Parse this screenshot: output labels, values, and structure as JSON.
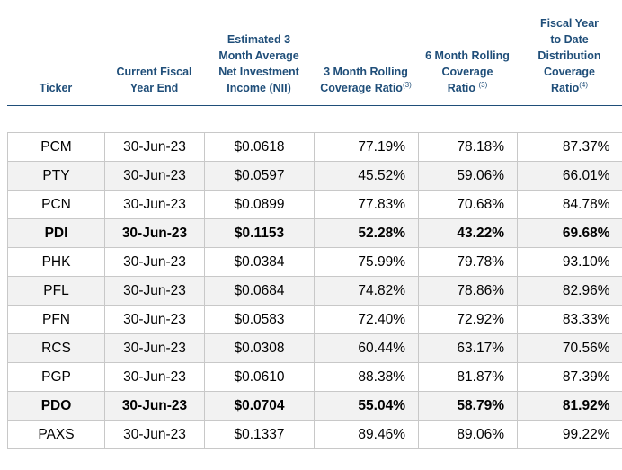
{
  "headers": {
    "ticker": "Ticker",
    "fiscal_year_end": [
      "Current Fiscal",
      "Year End"
    ],
    "nii": [
      "Estimated 3",
      "Month Average",
      "Net Investment",
      "Income (NII)"
    ],
    "three_month": [
      "3 Month Rolling",
      "Coverage Ratio"
    ],
    "three_month_note": "(3)",
    "six_month": [
      "6 Month Rolling",
      "Coverage",
      "Ratio"
    ],
    "six_month_note": "(3)",
    "fytd": [
      "Fiscal Year",
      "to Date",
      "Distribution",
      "Coverage",
      "Ratio"
    ],
    "fytd_note": "(4)"
  },
  "rows": [
    {
      "ticker": "PCM",
      "fye": "30-Jun-23",
      "nii": "$0.0618",
      "r3": "77.19%",
      "r6": "78.18%",
      "fytd": "87.37%",
      "bold": false
    },
    {
      "ticker": "PTY",
      "fye": "30-Jun-23",
      "nii": "$0.0597",
      "r3": "45.52%",
      "r6": "59.06%",
      "fytd": "66.01%",
      "bold": false
    },
    {
      "ticker": "PCN",
      "fye": "30-Jun-23",
      "nii": "$0.0899",
      "r3": "77.83%",
      "r6": "70.68%",
      "fytd": "84.78%",
      "bold": false
    },
    {
      "ticker": "PDI",
      "fye": "30-Jun-23",
      "nii": "$0.1153",
      "r3": "52.28%",
      "r6": "43.22%",
      "fytd": "69.68%",
      "bold": true
    },
    {
      "ticker": "PHK",
      "fye": "30-Jun-23",
      "nii": "$0.0384",
      "r3": "75.99%",
      "r6": "79.78%",
      "fytd": "93.10%",
      "bold": false
    },
    {
      "ticker": "PFL",
      "fye": "30-Jun-23",
      "nii": "$0.0684",
      "r3": "74.82%",
      "r6": "78.86%",
      "fytd": "82.96%",
      "bold": false
    },
    {
      "ticker": "PFN",
      "fye": "30-Jun-23",
      "nii": "$0.0583",
      "r3": "72.40%",
      "r6": "72.92%",
      "fytd": "83.33%",
      "bold": false
    },
    {
      "ticker": "RCS",
      "fye": "30-Jun-23",
      "nii": "$0.0308",
      "r3": "60.44%",
      "r6": "63.17%",
      "fytd": "70.56%",
      "bold": false
    },
    {
      "ticker": "PGP",
      "fye": "30-Jun-23",
      "nii": "$0.0610",
      "r3": "88.38%",
      "r6": "81.87%",
      "fytd": "87.39%",
      "bold": false
    },
    {
      "ticker": "PDO",
      "fye": "30-Jun-23",
      "nii": "$0.0704",
      "r3": "55.04%",
      "r6": "58.79%",
      "fytd": "81.92%",
      "bold": true
    },
    {
      "ticker": "PAXS",
      "fye": "30-Jun-23",
      "nii": "$0.1337",
      "r3": "89.46%",
      "r6": "89.06%",
      "fytd": "99.22%",
      "bold": false
    }
  ]
}
